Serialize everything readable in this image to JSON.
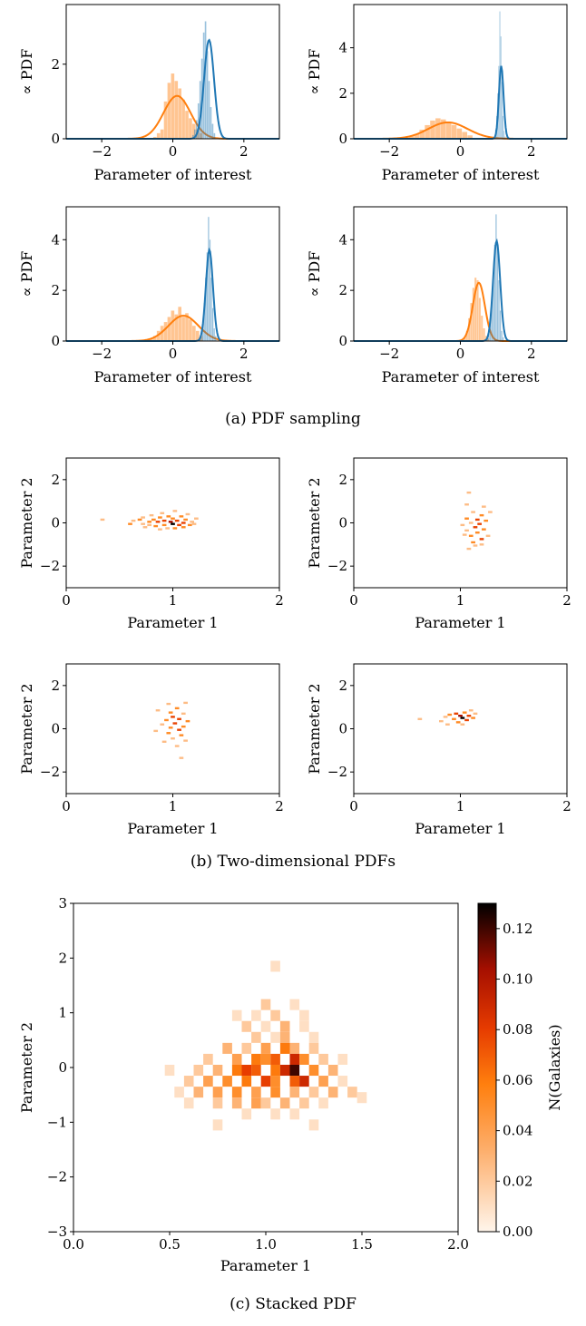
{
  "colors": {
    "blue": "#1f77b4",
    "orange": "#ff7f0e"
  },
  "captions": {
    "a": "(a) PDF sampling",
    "b": "(b) Two-dimensional PDFs",
    "c": "(c) Stacked PDF"
  },
  "chart_data": [
    {
      "type": "line",
      "panel": "a-top-left",
      "xlabel": "Parameter of interest",
      "ylabel": "∝ PDF",
      "xlim": [
        -3,
        3
      ],
      "ylim": [
        0,
        3.6
      ],
      "xticks": [
        -2,
        0,
        2
      ],
      "yticks": [
        0,
        2
      ],
      "series": [
        {
          "color": "#ff7f0e",
          "mu": 0.12,
          "sigma": 0.38,
          "peak": 1.15,
          "hist": {
            "start": -0.55,
            "width": 0.1,
            "values": [
              0.05,
              0.15,
              0.25,
              1.0,
              1.5,
              1.75,
              1.55,
              1.35,
              1.05,
              0.75,
              0.55,
              0.4,
              0.25,
              0.15
            ]
          }
        },
        {
          "color": "#1f77b4",
          "mu": 1.02,
          "sigma": 0.14,
          "peak": 2.65,
          "hist": {
            "start": 0.55,
            "width": 0.05,
            "values": [
              0.1,
              0.25,
              0.5,
              0.95,
              1.55,
              2.15,
              2.85,
              3.15,
              2.35,
              1.55,
              0.85,
              0.4,
              0.15
            ]
          }
        }
      ]
    },
    {
      "type": "line",
      "panel": "a-top-right",
      "xlabel": "Parameter of interest",
      "ylabel": "∝ PDF",
      "xlim": [
        -3,
        3
      ],
      "ylim": [
        0,
        5.9
      ],
      "xticks": [
        -2,
        0,
        2
      ],
      "yticks": [
        0,
        2,
        4
      ],
      "series": [
        {
          "color": "#ff7f0e",
          "mu": -0.35,
          "sigma": 0.55,
          "peak": 0.72,
          "hist": {
            "start": -1.45,
            "width": 0.15,
            "values": [
              0.1,
              0.2,
              0.4,
              0.6,
              0.8,
              0.9,
              0.85,
              0.75,
              0.6,
              0.45,
              0.3,
              0.15
            ]
          }
        },
        {
          "color": "#1f77b4",
          "mu": 1.15,
          "sigma": 0.065,
          "peak": 3.2,
          "hist": {
            "start": 0.95,
            "width": 0.03,
            "values": [
              0.1,
              0.4,
              1.0,
              2.0,
              3.2,
              5.6,
              4.5,
              2.5,
              1.0,
              0.35,
              0.1
            ]
          }
        }
      ]
    },
    {
      "type": "line",
      "panel": "a-bottom-left",
      "xlabel": "Parameter of interest",
      "ylabel": "∝ PDF",
      "xlim": [
        -3,
        3
      ],
      "ylim": [
        0,
        5.3
      ],
      "xticks": [
        -2,
        0,
        2
      ],
      "yticks": [
        0,
        2,
        4
      ],
      "series": [
        {
          "color": "#ff7f0e",
          "mu": 0.3,
          "sigma": 0.42,
          "peak": 1.0,
          "hist": {
            "start": -0.65,
            "width": 0.1,
            "values": [
              0.1,
              0.2,
              0.4,
              0.6,
              0.75,
              0.95,
              1.2,
              1.05,
              1.35,
              0.95,
              1.1,
              0.85,
              0.6,
              0.4,
              0.2
            ]
          }
        },
        {
          "color": "#1f77b4",
          "mu": 1.03,
          "sigma": 0.1,
          "peak": 3.6,
          "hist": {
            "start": 0.75,
            "width": 0.04,
            "values": [
              0.1,
              0.3,
              0.7,
              1.5,
              2.5,
              3.5,
              4.9,
              4.0,
              2.5,
              1.3,
              0.5,
              0.2
            ]
          }
        }
      ]
    },
    {
      "type": "line",
      "panel": "a-bottom-right",
      "xlabel": "Parameter of interest",
      "ylabel": "∝ PDF",
      "xlim": [
        -3,
        3
      ],
      "ylim": [
        0,
        5.3
      ],
      "xticks": [
        -2,
        0,
        2
      ],
      "yticks": [
        0,
        2,
        4
      ],
      "series": [
        {
          "color": "#ff7f0e",
          "mu": 0.52,
          "sigma": 0.17,
          "peak": 2.3,
          "hist": {
            "start": 0.1,
            "width": 0.06,
            "values": [
              0.15,
              0.4,
              0.9,
              1.5,
              2.1,
              2.5,
              2.4,
              1.7,
              1.0,
              0.5,
              0.2,
              0.1
            ]
          }
        },
        {
          "color": "#1f77b4",
          "mu": 1.02,
          "sigma": 0.1,
          "peak": 3.95,
          "hist": {
            "start": 0.75,
            "width": 0.04,
            "values": [
              0.1,
              0.3,
              0.8,
              1.6,
              2.7,
              3.8,
              5.0,
              3.9,
              2.4,
              1.2,
              0.4,
              0.15
            ]
          }
        }
      ]
    },
    {
      "type": "heatmap",
      "panel": "b-top-left",
      "xlabel": "Parameter 1",
      "ylabel": "Parameter 2",
      "xlim": [
        0,
        2
      ],
      "ylim": [
        -3,
        3
      ],
      "xticks": [
        0,
        1,
        2
      ],
      "yticks": [
        -2,
        0,
        2
      ],
      "cells": [
        [
          0.34,
          0.15,
          1
        ],
        [
          0.6,
          -0.05,
          2
        ],
        [
          0.63,
          0.1,
          1
        ],
        [
          0.69,
          0.15,
          2
        ],
        [
          0.72,
          -0.05,
          1
        ],
        [
          0.72,
          0.25,
          1
        ],
        [
          0.74,
          -0.2,
          1
        ],
        [
          0.78,
          0.05,
          2
        ],
        [
          0.78,
          -0.1,
          1
        ],
        [
          0.8,
          0.35,
          1
        ],
        [
          0.82,
          0.15,
          2
        ],
        [
          0.84,
          -0.15,
          2
        ],
        [
          0.86,
          0.05,
          3
        ],
        [
          0.88,
          0.25,
          2
        ],
        [
          0.88,
          -0.3,
          1
        ],
        [
          0.9,
          0.45,
          1
        ],
        [
          0.92,
          0.1,
          3
        ],
        [
          0.92,
          -0.1,
          2
        ],
        [
          0.95,
          -0.25,
          1
        ],
        [
          0.96,
          0.3,
          2
        ],
        [
          0.98,
          0.05,
          4
        ],
        [
          1.0,
          -0.05,
          5
        ],
        [
          1.0,
          0.2,
          2
        ],
        [
          1.02,
          0.55,
          1
        ],
        [
          1.02,
          -0.25,
          2
        ],
        [
          1.04,
          0.1,
          3
        ],
        [
          1.06,
          -0.1,
          3
        ],
        [
          1.08,
          0.3,
          2
        ],
        [
          1.1,
          0.0,
          3
        ],
        [
          1.1,
          -0.2,
          2
        ],
        [
          1.12,
          0.15,
          2
        ],
        [
          1.14,
          0.4,
          1
        ],
        [
          1.16,
          -0.1,
          2
        ],
        [
          1.18,
          0.05,
          1
        ],
        [
          1.2,
          -0.05,
          1
        ],
        [
          1.22,
          0.2,
          1
        ]
      ]
    },
    {
      "type": "heatmap",
      "panel": "b-top-right",
      "xlabel": "Parameter 1",
      "ylabel": "Parameter 2",
      "xlim": [
        0,
        2
      ],
      "ylim": [
        -3,
        3
      ],
      "xticks": [
        0,
        1,
        2
      ],
      "yticks": [
        -2,
        0,
        2
      ],
      "cells": [
        [
          1.08,
          1.4,
          1
        ],
        [
          1.06,
          0.85,
          1
        ],
        [
          1.22,
          0.75,
          1
        ],
        [
          1.28,
          0.5,
          1
        ],
        [
          1.12,
          0.5,
          1
        ],
        [
          1.2,
          0.35,
          2
        ],
        [
          1.06,
          0.2,
          2
        ],
        [
          1.16,
          0.15,
          3
        ],
        [
          1.24,
          0.1,
          2
        ],
        [
          1.1,
          0.0,
          1
        ],
        [
          1.18,
          -0.05,
          3
        ],
        [
          1.02,
          -0.1,
          1
        ],
        [
          1.14,
          -0.2,
          3
        ],
        [
          1.22,
          -0.3,
          2
        ],
        [
          1.06,
          -0.35,
          1
        ],
        [
          1.16,
          -0.45,
          2
        ],
        [
          1.1,
          -0.6,
          2
        ],
        [
          1.2,
          -0.75,
          3
        ],
        [
          1.12,
          -0.9,
          2
        ],
        [
          1.26,
          -0.6,
          1
        ],
        [
          1.04,
          -0.55,
          1
        ],
        [
          1.14,
          -1.05,
          1
        ],
        [
          1.08,
          -1.2,
          1
        ],
        [
          1.2,
          -1.0,
          1
        ]
      ]
    },
    {
      "type": "heatmap",
      "panel": "b-bottom-left",
      "xlabel": "Parameter 1",
      "ylabel": "Parameter 2",
      "xlim": [
        0,
        2
      ],
      "ylim": [
        -3,
        3
      ],
      "xticks": [
        0,
        1,
        2
      ],
      "yticks": [
        -2,
        0,
        2
      ],
      "cells": [
        [
          0.96,
          1.15,
          1
        ],
        [
          1.12,
          1.2,
          1
        ],
        [
          1.04,
          0.95,
          2
        ],
        [
          0.86,
          0.85,
          1
        ],
        [
          0.98,
          0.75,
          2
        ],
        [
          1.1,
          0.7,
          1
        ],
        [
          1.0,
          0.55,
          3
        ],
        [
          1.06,
          0.45,
          3
        ],
        [
          0.94,
          0.4,
          2
        ],
        [
          1.14,
          0.35,
          2
        ],
        [
          1.02,
          0.25,
          3
        ],
        [
          0.9,
          0.2,
          1
        ],
        [
          1.1,
          0.1,
          2
        ],
        [
          0.98,
          0.05,
          2
        ],
        [
          1.06,
          -0.05,
          3
        ],
        [
          0.84,
          -0.1,
          1
        ],
        [
          0.96,
          -0.2,
          2
        ],
        [
          1.08,
          -0.3,
          2
        ],
        [
          1.0,
          -0.45,
          1
        ],
        [
          1.12,
          -0.55,
          1
        ],
        [
          0.92,
          -0.6,
          1
        ],
        [
          1.04,
          -0.8,
          1
        ],
        [
          1.08,
          -1.35,
          1
        ]
      ]
    },
    {
      "type": "heatmap",
      "panel": "b-bottom-right",
      "xlabel": "Parameter 1",
      "ylabel": "Parameter 2",
      "xlim": [
        0,
        2
      ],
      "ylim": [
        -3,
        3
      ],
      "xticks": [
        0,
        1,
        2
      ],
      "yticks": [
        -2,
        0,
        2
      ],
      "cells": [
        [
          0.62,
          0.45,
          1
        ],
        [
          0.82,
          0.35,
          1
        ],
        [
          0.86,
          0.55,
          1
        ],
        [
          0.9,
          0.65,
          2
        ],
        [
          0.94,
          0.45,
          2
        ],
        [
          0.96,
          0.7,
          3
        ],
        [
          0.98,
          0.3,
          2
        ],
        [
          1.0,
          0.6,
          4
        ],
        [
          1.02,
          0.5,
          5
        ],
        [
          1.04,
          0.75,
          2
        ],
        [
          1.06,
          0.4,
          3
        ],
        [
          1.08,
          0.6,
          3
        ],
        [
          1.1,
          0.85,
          1
        ],
        [
          1.12,
          0.5,
          2
        ],
        [
          1.14,
          0.7,
          1
        ],
        [
          0.88,
          0.2,
          1
        ],
        [
          1.02,
          0.2,
          1
        ]
      ]
    },
    {
      "type": "heatmap",
      "panel": "c-stacked",
      "xlabel": "Parameter 1",
      "ylabel": "Parameter 2",
      "xlim": [
        0.0,
        2.0
      ],
      "ylim": [
        -3,
        3
      ],
      "xticks": [
        "0.0",
        "0.5",
        "1.0",
        "1.5",
        "2.0"
      ],
      "yticks": [
        -3,
        -2,
        -1,
        0,
        1,
        2,
        3
      ],
      "colorbar": {
        "label": "N(Galaxies)",
        "range": [
          0.0,
          0.13
        ],
        "ticks": [
          "0.00",
          "0.02",
          "0.04",
          "0.06",
          "0.08",
          "0.10",
          "0.12"
        ]
      },
      "cells": [
        [
          1.05,
          1.85,
          0.01
        ],
        [
          1.0,
          1.15,
          0.02
        ],
        [
          1.15,
          1.15,
          0.01
        ],
        [
          0.85,
          0.95,
          0.01
        ],
        [
          0.95,
          0.95,
          0.01
        ],
        [
          1.05,
          0.95,
          0.02
        ],
        [
          1.2,
          0.95,
          0.01
        ],
        [
          0.9,
          0.75,
          0.02
        ],
        [
          1.0,
          0.75,
          0.01
        ],
        [
          1.1,
          0.75,
          0.03
        ],
        [
          1.2,
          0.75,
          0.01
        ],
        [
          0.95,
          0.55,
          0.02
        ],
        [
          1.05,
          0.55,
          0.01
        ],
        [
          1.1,
          0.55,
          0.03
        ],
        [
          1.25,
          0.55,
          0.01
        ],
        [
          0.8,
          0.35,
          0.03
        ],
        [
          0.9,
          0.35,
          0.02
        ],
        [
          1.0,
          0.35,
          0.04
        ],
        [
          1.1,
          0.35,
          0.06
        ],
        [
          1.15,
          0.35,
          0.03
        ],
        [
          1.25,
          0.35,
          0.02
        ],
        [
          0.7,
          0.15,
          0.02
        ],
        [
          0.85,
          0.15,
          0.04
        ],
        [
          0.95,
          0.15,
          0.06
        ],
        [
          1.0,
          0.15,
          0.05
        ],
        [
          1.05,
          0.15,
          0.07
        ],
        [
          1.15,
          0.15,
          0.09
        ],
        [
          1.2,
          0.15,
          0.05
        ],
        [
          1.3,
          0.15,
          0.02
        ],
        [
          1.4,
          0.15,
          0.01
        ],
        [
          0.5,
          -0.05,
          0.01
        ],
        [
          0.65,
          -0.05,
          0.02
        ],
        [
          0.75,
          -0.05,
          0.03
        ],
        [
          0.85,
          -0.05,
          0.06
        ],
        [
          0.9,
          -0.05,
          0.08
        ],
        [
          0.95,
          -0.05,
          0.07
        ],
        [
          1.05,
          -0.05,
          0.06
        ],
        [
          1.1,
          -0.05,
          0.09
        ],
        [
          1.15,
          -0.05,
          0.12
        ],
        [
          1.25,
          -0.05,
          0.05
        ],
        [
          1.35,
          -0.05,
          0.03
        ],
        [
          0.6,
          -0.25,
          0.02
        ],
        [
          0.7,
          -0.25,
          0.04
        ],
        [
          0.8,
          -0.25,
          0.05
        ],
        [
          0.9,
          -0.25,
          0.06
        ],
        [
          1.0,
          -0.25,
          0.08
        ],
        [
          1.05,
          -0.25,
          0.05
        ],
        [
          1.15,
          -0.25,
          0.07
        ],
        [
          1.2,
          -0.25,
          0.09
        ],
        [
          1.3,
          -0.25,
          0.04
        ],
        [
          1.4,
          -0.25,
          0.01
        ],
        [
          0.55,
          -0.45,
          0.01
        ],
        [
          0.65,
          -0.45,
          0.03
        ],
        [
          0.75,
          -0.45,
          0.04
        ],
        [
          0.85,
          -0.45,
          0.05
        ],
        [
          0.95,
          -0.45,
          0.04
        ],
        [
          1.05,
          -0.45,
          0.05
        ],
        [
          1.15,
          -0.45,
          0.03
        ],
        [
          1.25,
          -0.45,
          0.02
        ],
        [
          1.35,
          -0.45,
          0.03
        ],
        [
          1.45,
          -0.45,
          0.02
        ],
        [
          1.5,
          -0.55,
          0.01
        ],
        [
          0.6,
          -0.65,
          0.01
        ],
        [
          0.75,
          -0.65,
          0.02
        ],
        [
          0.85,
          -0.65,
          0.03
        ],
        [
          0.95,
          -0.65,
          0.04
        ],
        [
          1.0,
          -0.65,
          0.02
        ],
        [
          1.1,
          -0.65,
          0.03
        ],
        [
          1.2,
          -0.65,
          0.02
        ],
        [
          1.3,
          -0.65,
          0.01
        ],
        [
          0.9,
          -0.85,
          0.01
        ],
        [
          1.05,
          -0.85,
          0.01
        ],
        [
          1.15,
          -0.85,
          0.01
        ],
        [
          0.75,
          -1.05,
          0.01
        ],
        [
          1.25,
          -1.05,
          0.01
        ]
      ]
    }
  ]
}
